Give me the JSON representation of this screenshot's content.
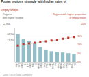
{
  "chart_data": {
    "type": "bar",
    "title": "Poorer regions struggle with higher rates of",
    "subtitle": "empty shops",
    "categories": [
      "Lon-\ndon",
      "S.\nEast",
      "East\nof E.",
      "E.\nMid",
      "East\nMidds",
      "Scot-\nland",
      "Yorks\n& H.",
      "West\nus",
      "West\nMidds",
      "N.\nEast",
      "N.\nWest"
    ],
    "series": [
      {
        "type": "bar",
        "color": "#93bec8",
        "values": [
          2900,
          2750,
          2700,
          2620,
          2500,
          2430,
          2380,
          2360,
          2340,
          2320,
          2300
        ]
      },
      {
        "type": "line",
        "axis": "y2",
        "color": "#d0d0d0",
        "line_style": "solid",
        "values": [
          9.5,
          null,
          null,
          null,
          null,
          null,
          null,
          null,
          null,
          null,
          14.5
        ]
      },
      {
        "type": "scatter",
        "axis": "y2",
        "color": "#c0392b",
        "marker": "square",
        "values": [
          9.5,
          10.2,
          10.8,
          11.2,
          11.8,
          12.0,
          12.5,
          13.0,
          13.5,
          14.0,
          14.5
        ]
      }
    ],
    "ylim": [
      2050,
      3100
    ],
    "yticks": [
      {
        "value": 2700,
        "label": "£2,700"
      },
      {
        "value": 2904,
        "label": "£2,904"
      }
    ],
    "y2lim": [
      0,
      20
    ],
    "y2ticks": [
      {
        "value": 0,
        "label": "0%"
      },
      {
        "value": 5,
        "label": "5%"
      },
      {
        "value": 10,
        "label": "10%"
      },
      {
        "value": 15,
        "label": "15%"
      }
    ],
    "grid": true,
    "annotations": [
      {
        "text": "Regions\nwith higher income",
        "color": "#666666"
      },
      {
        "text": "£2,904",
        "color": "#555555"
      },
      {
        "text": "Regions with higher proportion\nof empty shops",
        "color": "#c0392b"
      },
      {
        "text": "15%",
        "color": "#c0392b"
      },
      {
        "text": "Data: Local Data Company",
        "color": "#999999"
      }
    ]
  }
}
